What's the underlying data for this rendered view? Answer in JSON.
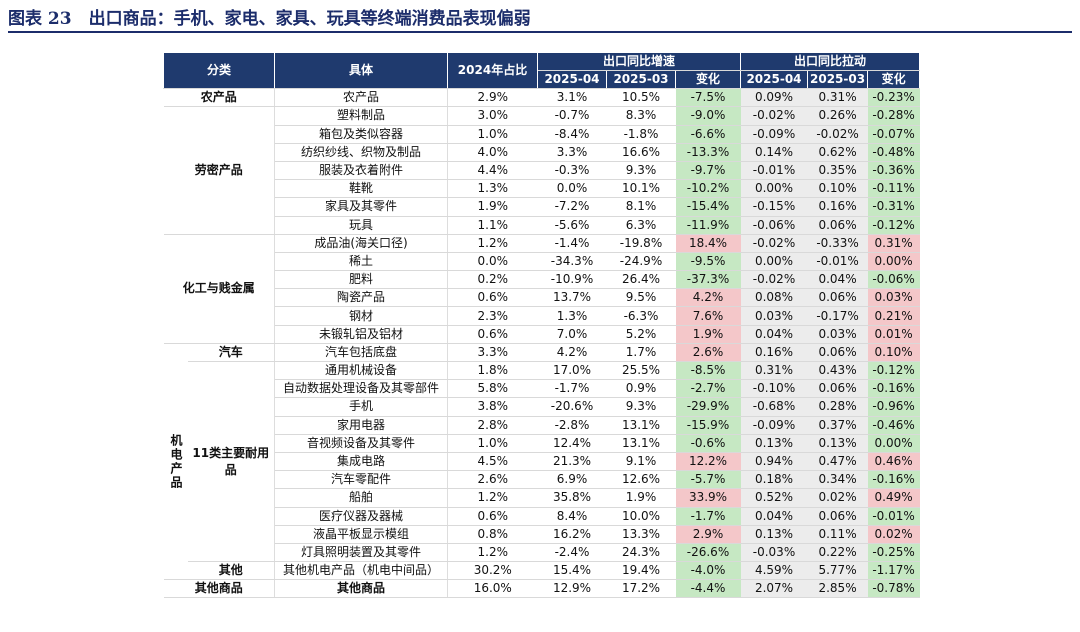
{
  "title": "图表 23　出口商品：手机、家电、家具、玩具等终端消费品表现偏弱",
  "header": {
    "cat": "分类",
    "item": "具体",
    "share": "2024年占比",
    "growth_group": "出口同比增速",
    "pull_group": "出口同比拉动",
    "m1": "2025-04",
    "m2": "2025-03",
    "chg": "变化"
  },
  "categories": {
    "agri": "农产品",
    "labor": "劳密产品",
    "chem": "化工与贱金属",
    "mech": "机电产品",
    "auto": "汽车",
    "durable": "11类主要耐用品",
    "other_mech": "其他",
    "other_goods": "其他商品"
  },
  "colors": {
    "header": "#1f3a6e",
    "up": "#f4c7c9",
    "down": "#c6e8c3",
    "pull": "#ececec"
  },
  "rows": [
    {
      "item": "农产品",
      "share": "2.9%",
      "g4": "3.1%",
      "g3": "10.5%",
      "gc": "-7.5%",
      "p4": "0.09%",
      "p3": "0.31%",
      "pc": "-0.23%"
    },
    {
      "item": "塑料制品",
      "share": "3.0%",
      "g4": "-0.7%",
      "g3": "8.3%",
      "gc": "-9.0%",
      "p4": "-0.02%",
      "p3": "0.26%",
      "pc": "-0.28%"
    },
    {
      "item": "箱包及类似容器",
      "share": "1.0%",
      "g4": "-8.4%",
      "g3": "-1.8%",
      "gc": "-6.6%",
      "p4": "-0.09%",
      "p3": "-0.02%",
      "pc": "-0.07%"
    },
    {
      "item": "纺织纱线、织物及制品",
      "share": "4.0%",
      "g4": "3.3%",
      "g3": "16.6%",
      "gc": "-13.3%",
      "p4": "0.14%",
      "p3": "0.62%",
      "pc": "-0.48%"
    },
    {
      "item": "服装及衣着附件",
      "share": "4.4%",
      "g4": "-0.3%",
      "g3": "9.3%",
      "gc": "-9.7%",
      "p4": "-0.01%",
      "p3": "0.35%",
      "pc": "-0.36%"
    },
    {
      "item": "鞋靴",
      "share": "1.3%",
      "g4": "0.0%",
      "g3": "10.1%",
      "gc": "-10.2%",
      "p4": "0.00%",
      "p3": "0.10%",
      "pc": "-0.11%"
    },
    {
      "item": "家具及其零件",
      "share": "1.9%",
      "g4": "-7.2%",
      "g3": "8.1%",
      "gc": "-15.4%",
      "p4": "-0.15%",
      "p3": "0.16%",
      "pc": "-0.31%"
    },
    {
      "item": "玩具",
      "share": "1.1%",
      "g4": "-5.6%",
      "g3": "6.3%",
      "gc": "-11.9%",
      "p4": "-0.06%",
      "p3": "0.06%",
      "pc": "-0.12%"
    },
    {
      "item": "成品油(海关口径)",
      "share": "1.2%",
      "g4": "-1.4%",
      "g3": "-19.8%",
      "gc": "18.4%",
      "p4": "-0.02%",
      "p3": "-0.33%",
      "pc": "0.31%"
    },
    {
      "item": "稀土",
      "share": "0.0%",
      "g4": "-34.3%",
      "g3": "-24.9%",
      "gc": "-9.5%",
      "p4": "0.00%",
      "p3": "-0.01%",
      "pc": "0.00%"
    },
    {
      "item": "肥料",
      "share": "0.2%",
      "g4": "-10.9%",
      "g3": "26.4%",
      "gc": "-37.3%",
      "p4": "-0.02%",
      "p3": "0.04%",
      "pc": "-0.06%"
    },
    {
      "item": "陶瓷产品",
      "share": "0.6%",
      "g4": "13.7%",
      "g3": "9.5%",
      "gc": "4.2%",
      "p4": "0.08%",
      "p3": "0.06%",
      "pc": "0.03%"
    },
    {
      "item": "钢材",
      "share": "2.3%",
      "g4": "1.3%",
      "g3": "-6.3%",
      "gc": "7.6%",
      "p4": "0.03%",
      "p3": "-0.17%",
      "pc": "0.21%"
    },
    {
      "item": "未锻轧铝及铝材",
      "share": "0.6%",
      "g4": "7.0%",
      "g3": "5.2%",
      "gc": "1.9%",
      "p4": "0.04%",
      "p3": "0.03%",
      "pc": "0.01%"
    },
    {
      "item": "汽车包括底盘",
      "share": "3.3%",
      "g4": "4.2%",
      "g3": "1.7%",
      "gc": "2.6%",
      "p4": "0.16%",
      "p3": "0.06%",
      "pc": "0.10%"
    },
    {
      "item": "通用机械设备",
      "share": "1.8%",
      "g4": "17.0%",
      "g3": "25.5%",
      "gc": "-8.5%",
      "p4": "0.31%",
      "p3": "0.43%",
      "pc": "-0.12%"
    },
    {
      "item": "自动数据处理设备及其零部件",
      "share": "5.8%",
      "g4": "-1.7%",
      "g3": "0.9%",
      "gc": "-2.7%",
      "p4": "-0.10%",
      "p3": "0.06%",
      "pc": "-0.16%"
    },
    {
      "item": "手机",
      "share": "3.8%",
      "g4": "-20.6%",
      "g3": "9.3%",
      "gc": "-29.9%",
      "p4": "-0.68%",
      "p3": "0.28%",
      "pc": "-0.96%"
    },
    {
      "item": "家用电器",
      "share": "2.8%",
      "g4": "-2.8%",
      "g3": "13.1%",
      "gc": "-15.9%",
      "p4": "-0.09%",
      "p3": "0.37%",
      "pc": "-0.46%"
    },
    {
      "item": "音视频设备及其零件",
      "share": "1.0%",
      "g4": "12.4%",
      "g3": "13.1%",
      "gc": "-0.6%",
      "p4": "0.13%",
      "p3": "0.13%",
      "pc": "0.00%"
    },
    {
      "item": "集成电路",
      "share": "4.5%",
      "g4": "21.3%",
      "g3": "9.1%",
      "gc": "12.2%",
      "p4": "0.94%",
      "p3": "0.47%",
      "pc": "0.46%"
    },
    {
      "item": "汽车零配件",
      "share": "2.6%",
      "g4": "6.9%",
      "g3": "12.6%",
      "gc": "-5.7%",
      "p4": "0.18%",
      "p3": "0.34%",
      "pc": "-0.16%"
    },
    {
      "item": "船舶",
      "share": "1.2%",
      "g4": "35.8%",
      "g3": "1.9%",
      "gc": "33.9%",
      "p4": "0.52%",
      "p3": "0.02%",
      "pc": "0.49%"
    },
    {
      "item": "医疗仪器及器械",
      "share": "0.6%",
      "g4": "8.4%",
      "g3": "10.0%",
      "gc": "-1.7%",
      "p4": "0.04%",
      "p3": "0.06%",
      "pc": "-0.01%"
    },
    {
      "item": "液晶平板显示模组",
      "share": "0.8%",
      "g4": "16.2%",
      "g3": "13.3%",
      "gc": "2.9%",
      "p4": "0.13%",
      "p3": "0.11%",
      "pc": "0.02%"
    },
    {
      "item": "灯具照明装置及其零件",
      "share": "1.2%",
      "g4": "-2.4%",
      "g3": "24.3%",
      "gc": "-26.6%",
      "p4": "-0.03%",
      "p3": "0.22%",
      "pc": "-0.25%"
    },
    {
      "item": "其他机电产品（机电中间品）",
      "share": "30.2%",
      "g4": "15.4%",
      "g3": "19.4%",
      "gc": "-4.0%",
      "p4": "4.59%",
      "p3": "5.77%",
      "pc": "-1.17%"
    },
    {
      "item": "其他商品",
      "share": "16.0%",
      "g4": "12.9%",
      "g3": "17.2%",
      "gc": "-4.4%",
      "p4": "2.07%",
      "p3": "2.85%",
      "pc": "-0.78%"
    }
  ]
}
